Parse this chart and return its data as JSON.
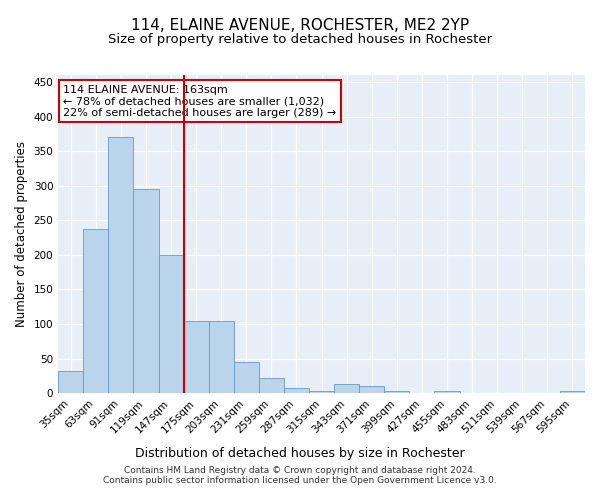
{
  "title": "114, ELAINE AVENUE, ROCHESTER, ME2 2YP",
  "subtitle": "Size of property relative to detached houses in Rochester",
  "xlabel": "Distribution of detached houses by size in Rochester",
  "ylabel": "Number of detached properties",
  "categories": [
    "35sqm",
    "63sqm",
    "91sqm",
    "119sqm",
    "147sqm",
    "175sqm",
    "203sqm",
    "231sqm",
    "259sqm",
    "287sqm",
    "315sqm",
    "343sqm",
    "371sqm",
    "399sqm",
    "427sqm",
    "455sqm",
    "483sqm",
    "511sqm",
    "539sqm",
    "567sqm",
    "595sqm"
  ],
  "values": [
    32,
    237,
    370,
    295,
    200,
    105,
    105,
    45,
    22,
    8,
    3,
    13,
    10,
    3,
    0,
    3,
    0,
    0,
    0,
    0,
    3
  ],
  "bar_color": "#bad4eb",
  "bar_edge_color": "#6699cc",
  "vline_x": 4.5,
  "vline_color": "#cc0000",
  "annotation_line1": "114 ELAINE AVENUE: 163sqm",
  "annotation_line2": "← 78% of detached houses are smaller (1,032)",
  "annotation_line3": "22% of semi-detached houses are larger (289) →",
  "annotation_box_color": "white",
  "annotation_box_edge_color": "#cc0000",
  "ylim": [
    0,
    460
  ],
  "yticks": [
    0,
    50,
    100,
    150,
    200,
    250,
    300,
    350,
    400,
    450
  ],
  "footer_line1": "Contains HM Land Registry data © Crown copyright and database right 2024.",
  "footer_line2": "Contains public sector information licensed under the Open Government Licence v3.0.",
  "title_fontsize": 11,
  "subtitle_fontsize": 9.5,
  "xlabel_fontsize": 9,
  "ylabel_fontsize": 8.5,
  "tick_fontsize": 7.5,
  "annotation_fontsize": 8,
  "footer_fontsize": 6.5,
  "background_color": "#e8eef8"
}
